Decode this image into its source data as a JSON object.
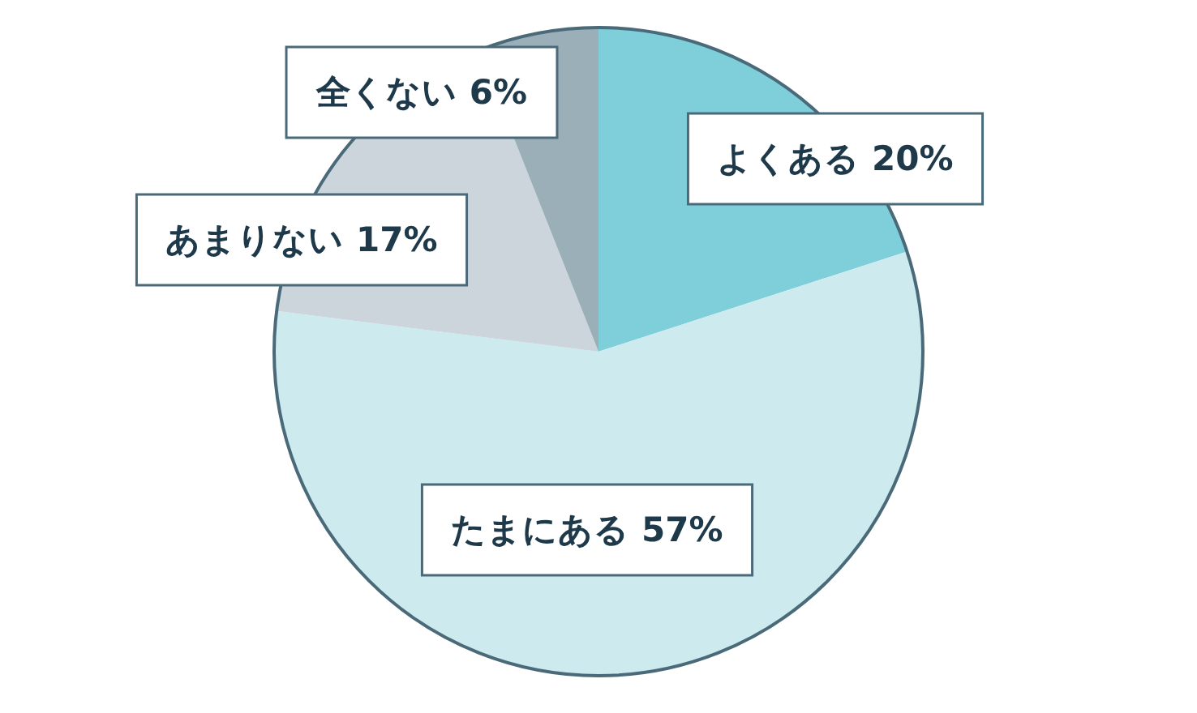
{
  "chart_data": {
    "type": "pie",
    "categories": [
      "よくある",
      "たまにある",
      "あまりない",
      "全くない"
    ],
    "values": [
      20,
      57,
      17,
      6
    ],
    "value_labels": [
      "20%",
      "57%",
      "17%",
      "6%"
    ],
    "colors": [
      "#7ecfda",
      "#cdeaee",
      "#cdd5dc",
      "#9aafb8"
    ]
  }
}
